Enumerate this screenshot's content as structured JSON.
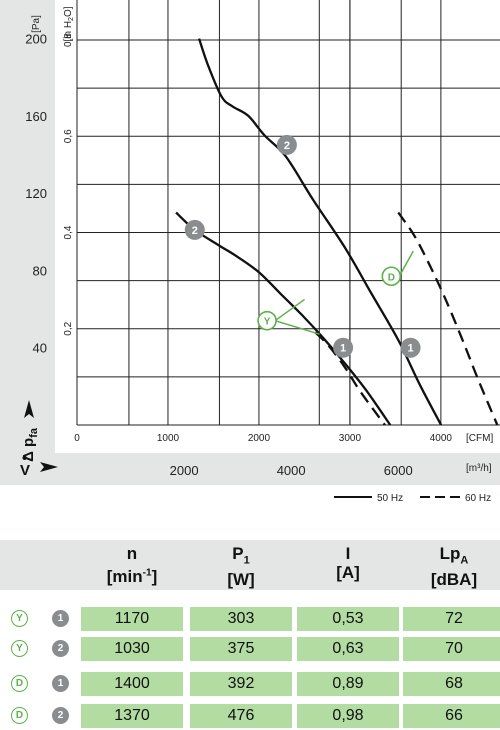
{
  "chart_data": {
    "type": "line",
    "title": "",
    "y_axis_pa": {
      "label": "[Pa]",
      "ylabel": "Δ pfa",
      "ticks": [
        40,
        80,
        120,
        160,
        200
      ],
      "range": [
        0,
        220
      ]
    },
    "y_axis_inh2o": {
      "label": "[in H2O]",
      "ticks": [
        "0,2",
        "0,4",
        "0,6",
        "0,8"
      ],
      "tick_values": [
        0.2,
        0.4,
        0.6,
        0.8
      ]
    },
    "x_axis_cfm": {
      "label": "[CFM]",
      "ticks": [
        0,
        1000,
        2000,
        3000,
        4000
      ]
    },
    "x_axis_m3h": {
      "label": "[m³/h]",
      "xlabel": "V̇",
      "ticks": [
        2000,
        4000,
        6000
      ]
    },
    "x_range_m3h": [
      0,
      7900
    ],
    "grid": true,
    "legend": [
      {
        "label": "50 Hz",
        "style": "solid"
      },
      {
        "label": "60 Hz",
        "style": "dashed"
      }
    ],
    "series": [
      {
        "style": "solid",
        "points": [
          [
            2280,
            200
          ],
          [
            2450,
            186
          ],
          [
            2700,
            170
          ],
          [
            2900,
            165
          ],
          [
            3200,
            160
          ],
          [
            3500,
            150
          ],
          [
            3900,
            139
          ],
          [
            4400,
            117
          ],
          [
            5000,
            92
          ],
          [
            5500,
            68
          ],
          [
            6000,
            44
          ],
          [
            6400,
            21
          ],
          [
            6800,
            0
          ]
        ]
      },
      {
        "style": "solid",
        "points": [
          [
            1850,
            110
          ],
          [
            2200,
            101
          ],
          [
            2650,
            93
          ],
          [
            3000,
            87
          ],
          [
            3400,
            79
          ],
          [
            3800,
            68
          ],
          [
            4200,
            57
          ],
          [
            4600,
            45
          ],
          [
            5000,
            32
          ],
          [
            5400,
            18
          ],
          [
            5850,
            0
          ]
        ]
      },
      {
        "style": "dashed",
        "points": [
          [
            6000,
            110
          ],
          [
            6300,
            98
          ],
          [
            6600,
            82
          ],
          [
            6900,
            64
          ],
          [
            7200,
            44
          ],
          [
            7500,
            23
          ],
          [
            7850,
            0
          ]
        ]
      },
      {
        "style": "dashed",
        "points": [
          [
            4450,
            48
          ],
          [
            4700,
            41
          ],
          [
            5000,
            30
          ],
          [
            5300,
            17
          ],
          [
            5750,
            0
          ]
        ]
      }
    ],
    "curve_labels": [
      {
        "text": "2",
        "x": 3920,
        "y": 145
      },
      {
        "text": "2",
        "x": 2200,
        "y": 101
      },
      {
        "text": "1",
        "x": 6230,
        "y": 40
      },
      {
        "text": "1",
        "x": 4970,
        "y": 40
      }
    ],
    "mode_labels": [
      {
        "text": "D",
        "x": 5870,
        "y": 77,
        "targets": [
          [
            6280,
            90
          ]
        ]
      },
      {
        "text": "Y",
        "x": 3550,
        "y": 54,
        "targets": [
          [
            4250,
            65
          ],
          [
            4530,
            47
          ]
        ]
      }
    ]
  },
  "table": {
    "headers": [
      {
        "main": "n",
        "sub": "",
        "unit": "[min-1]"
      },
      {
        "main": "P",
        "sub": "1",
        "unit": "[W]"
      },
      {
        "main": "I",
        "sub": "",
        "unit": "[A]"
      },
      {
        "main": "Lp",
        "sub": "A",
        "unit": "[dBA]"
      }
    ],
    "rows": [
      {
        "mode": "Y",
        "curve": "1",
        "values": [
          "1170",
          "303",
          "0,53",
          "72"
        ]
      },
      {
        "mode": "Y",
        "curve": "2",
        "values": [
          "1030",
          "375",
          "0,63",
          "70"
        ]
      },
      {
        "mode": "D",
        "curve": "1",
        "values": [
          "1400",
          "392",
          "0,89",
          "68"
        ]
      },
      {
        "mode": "D",
        "curve": "2",
        "values": [
          "1370",
          "476",
          "0,98",
          "66"
        ]
      }
    ]
  }
}
